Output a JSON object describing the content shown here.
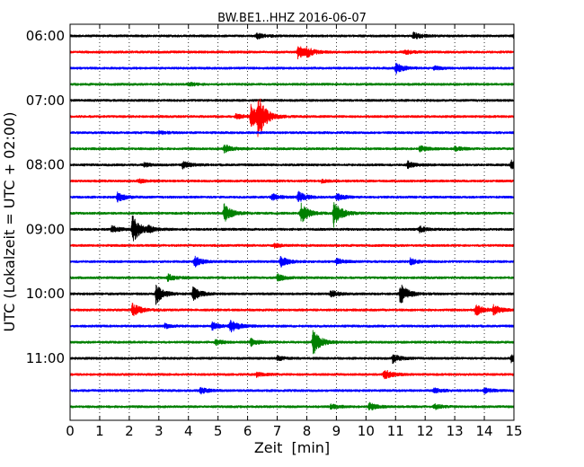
{
  "chart_data": {
    "type": "line",
    "title": "BW.BE1..HHZ 2016-06-07",
    "xlabel": "Zeit  [min]",
    "ylabel": "UTC (Lokalzeit = UTC + 02:00)",
    "xlim": [
      0,
      15
    ],
    "x_ticks": [
      "0",
      "1",
      "2",
      "3",
      "4",
      "5",
      "6",
      "7",
      "8",
      "9",
      "10",
      "11",
      "12",
      "13",
      "14",
      "15"
    ],
    "y_ticks": [
      "06:00",
      "07:00",
      "08:00",
      "09:00",
      "10:00",
      "11:00"
    ],
    "trace_minutes_per_line": 15,
    "start_time": "06:00",
    "grid": "vertical dotted",
    "colors": [
      "#000000",
      "#ff0000",
      "#0000ff",
      "#008000"
    ],
    "traces": [
      {
        "label": "06:00",
        "events": [
          [
            6.3,
            0.8
          ],
          [
            11.6,
            1.0
          ],
          [
            15.0,
            1.2
          ]
        ]
      },
      {
        "label": "06:15",
        "events": [
          [
            7.7,
            2.0
          ],
          [
            8.0,
            1.0
          ],
          [
            11.3,
            0.6
          ]
        ]
      },
      {
        "label": "06:30",
        "events": [
          [
            11.0,
            1.5
          ],
          [
            12.3,
            0.5
          ]
        ]
      },
      {
        "label": "06:45",
        "events": [
          [
            4.0,
            0.5
          ]
        ]
      },
      {
        "label": "07:00",
        "events": []
      },
      {
        "label": "07:15",
        "events": [
          [
            6.1,
            3.5
          ],
          [
            6.35,
            5.5
          ],
          [
            5.6,
            0.8
          ]
        ]
      },
      {
        "label": "07:30",
        "events": [
          [
            3.0,
            0.4
          ]
        ]
      },
      {
        "label": "07:45",
        "events": [
          [
            5.2,
            1.2
          ],
          [
            11.8,
            0.8
          ],
          [
            13.0,
            0.6
          ]
        ]
      },
      {
        "label": "08:00",
        "events": [
          [
            3.8,
            1.0
          ],
          [
            11.4,
            1.0
          ],
          [
            14.9,
            1.2
          ],
          [
            2.5,
            0.5
          ]
        ]
      },
      {
        "label": "08:15",
        "events": [
          [
            2.3,
            0.5
          ],
          [
            8.5,
            0.4
          ]
        ]
      },
      {
        "label": "08:30",
        "events": [
          [
            1.6,
            1.3
          ],
          [
            6.8,
            1.0
          ],
          [
            7.7,
            1.5
          ],
          [
            9.0,
            1.0
          ]
        ]
      },
      {
        "label": "08:45",
        "events": [
          [
            5.2,
            2.6
          ],
          [
            7.8,
            2.8
          ],
          [
            8.9,
            3.8
          ]
        ]
      },
      {
        "label": "09:00",
        "events": [
          [
            2.1,
            4.0
          ],
          [
            1.4,
            1.0
          ],
          [
            2.6,
            0.8
          ],
          [
            11.8,
            0.8
          ]
        ]
      },
      {
        "label": "09:15",
        "events": [
          [
            6.9,
            0.5
          ]
        ]
      },
      {
        "label": "09:30",
        "events": [
          [
            4.2,
            1.5
          ],
          [
            7.1,
            1.5
          ],
          [
            9.0,
            0.8
          ],
          [
            11.5,
            0.8
          ]
        ]
      },
      {
        "label": "09:45",
        "events": [
          [
            3.3,
            1.0
          ],
          [
            7.0,
            1.0
          ]
        ]
      },
      {
        "label": "10:00",
        "events": [
          [
            2.9,
            2.8
          ],
          [
            4.15,
            2.0
          ],
          [
            11.15,
            3.0
          ],
          [
            8.8,
            1.0
          ]
        ]
      },
      {
        "label": "10:15",
        "events": [
          [
            2.1,
            2.0
          ],
          [
            13.7,
            1.6
          ],
          [
            14.3,
            1.4
          ]
        ]
      },
      {
        "label": "10:30",
        "events": [
          [
            5.4,
            2.0
          ],
          [
            4.8,
            1.0
          ],
          [
            3.2,
            0.6
          ]
        ]
      },
      {
        "label": "10:45",
        "events": [
          [
            8.2,
            3.6
          ],
          [
            6.1,
            1.0
          ],
          [
            4.9,
            0.8
          ]
        ]
      },
      {
        "label": "11:00",
        "events": [
          [
            10.9,
            1.2
          ],
          [
            14.9,
            1.0
          ],
          [
            7.0,
            0.6
          ]
        ]
      },
      {
        "label": "11:15",
        "events": [
          [
            10.6,
            1.5
          ],
          [
            6.3,
            0.6
          ]
        ]
      },
      {
        "label": "11:30",
        "events": [
          [
            4.4,
            0.9
          ],
          [
            12.3,
            0.7
          ],
          [
            14.0,
            0.6
          ]
        ]
      },
      {
        "label": "11:45",
        "events": [
          [
            8.8,
            0.7
          ],
          [
            10.1,
            1.0
          ],
          [
            12.3,
            0.7
          ]
        ]
      }
    ]
  }
}
